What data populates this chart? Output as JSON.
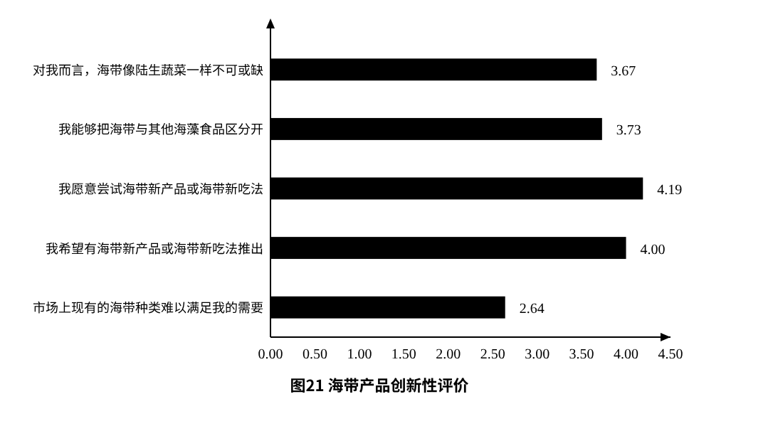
{
  "chart_data": {
    "type": "bar",
    "orientation": "horizontal",
    "title": "图21 海带产品创新性评价",
    "categories": [
      "对我而言，海带像陆生蔬菜一样不可或缺",
      "我能够把海带与其他海藻食品区分开",
      "我愿意尝试海带新产品或海带新吃法",
      "我希望有海带新产品或海带新吃法推出",
      "市场上现有的海带种类难以满足我的需要"
    ],
    "values": [
      3.67,
      3.73,
      4.19,
      4.0,
      2.64
    ],
    "value_labels": [
      "3.67",
      "3.73",
      "4.19",
      "4.00",
      "2.64"
    ],
    "color": "#000000",
    "xlim": [
      0,
      4.5
    ],
    "xticks": [
      {
        "value": 0,
        "label": "0.00"
      },
      {
        "value": 0.5,
        "label": "0.50"
      },
      {
        "value": 1,
        "label": "1.00"
      },
      {
        "value": 1.5,
        "label": "1.50"
      },
      {
        "value": 2,
        "label": "2.00"
      },
      {
        "value": 2.5,
        "label": "2.50"
      },
      {
        "value": 3,
        "label": "3.00"
      },
      {
        "value": 3.5,
        "label": "3.50"
      },
      {
        "value": 4,
        "label": "4.00"
      },
      {
        "value": 4.5,
        "label": "4.50"
      }
    ],
    "grid": false
  }
}
